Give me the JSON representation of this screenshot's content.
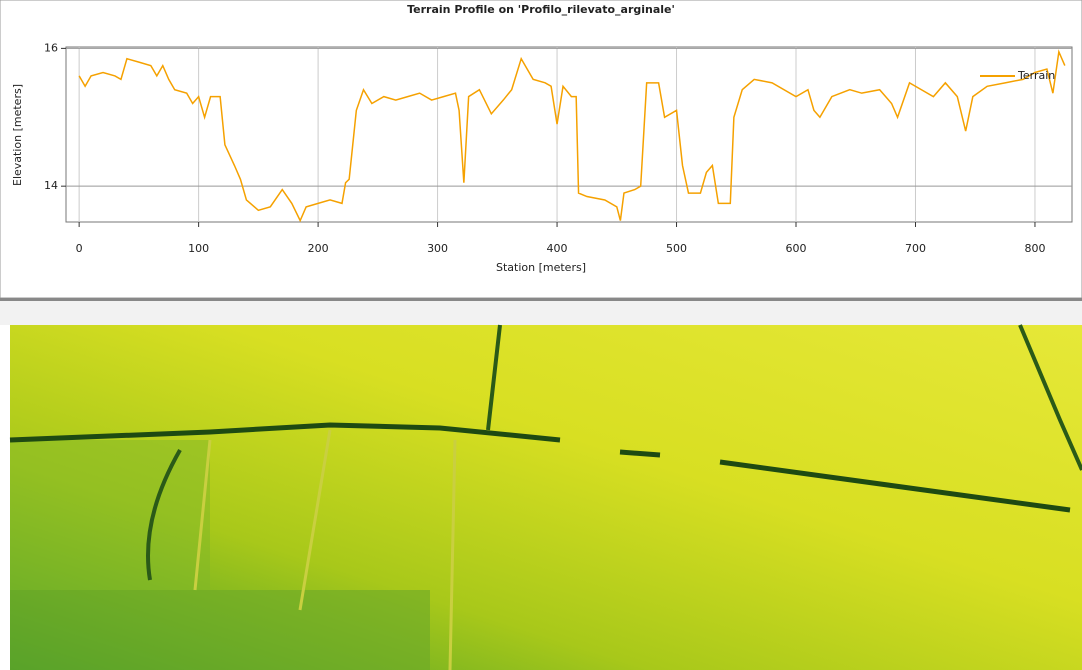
{
  "chart_data": {
    "type": "line",
    "title": "Terrain Profile on 'Profilo_rilevato_arginale'",
    "x_label": "Station [meters]",
    "y_label": "Elevation [meters]",
    "grid": true,
    "legend": "upper right",
    "xlim": [
      -11,
      831
    ],
    "ylim": [
      13.48,
      16.02
    ],
    "xticks": [
      0,
      100,
      200,
      300,
      400,
      500,
      600,
      700,
      800
    ],
    "yticks": [
      14,
      16
    ],
    "x": [
      0,
      5,
      10,
      20,
      30,
      35,
      40,
      50,
      60,
      65,
      70,
      75,
      80,
      90,
      95,
      100,
      105,
      110,
      118,
      122,
      130,
      135,
      140,
      150,
      160,
      170,
      178,
      185,
      190,
      200,
      210,
      220,
      223,
      226,
      232,
      238,
      245,
      255,
      265,
      275,
      285,
      295,
      305,
      315,
      318,
      322,
      326,
      335,
      345,
      355,
      362,
      370,
      380,
      390,
      395,
      400,
      405,
      412,
      416,
      418,
      425,
      440,
      450,
      453,
      456,
      465,
      470,
      475,
      485,
      490,
      500,
      505,
      510,
      520,
      525,
      530,
      535,
      545,
      548,
      555,
      565,
      580,
      600,
      610,
      615,
      620,
      630,
      645,
      655,
      670,
      680,
      685,
      695,
      705,
      715,
      725,
      735,
      742,
      748,
      760,
      775,
      790,
      800,
      810,
      815,
      820,
      825
    ],
    "series": [
      {
        "name": "Terrain",
        "color": "#f5a100",
        "values": [
          15.6,
          15.45,
          15.6,
          15.65,
          15.6,
          15.55,
          15.85,
          15.8,
          15.75,
          15.6,
          15.75,
          15.55,
          15.4,
          15.35,
          15.2,
          15.3,
          15.0,
          15.3,
          15.3,
          14.6,
          14.3,
          14.1,
          13.8,
          13.65,
          13.7,
          13.95,
          13.75,
          13.5,
          13.7,
          13.75,
          13.8,
          13.75,
          14.05,
          14.1,
          15.1,
          15.4,
          15.2,
          15.3,
          15.25,
          15.3,
          15.35,
          15.25,
          15.3,
          15.35,
          15.1,
          14.05,
          15.3,
          15.4,
          15.05,
          15.25,
          15.4,
          15.85,
          15.55,
          15.5,
          15.45,
          14.9,
          15.45,
          15.3,
          15.3,
          13.9,
          13.85,
          13.8,
          13.7,
          13.5,
          13.9,
          13.95,
          14.0,
          15.5,
          15.5,
          15.0,
          15.1,
          14.3,
          13.9,
          13.9,
          14.2,
          14.3,
          13.75,
          13.75,
          15.0,
          15.4,
          15.55,
          15.5,
          15.3,
          15.4,
          15.1,
          15.0,
          15.3,
          15.4,
          15.35,
          15.4,
          15.2,
          15.0,
          15.5,
          15.4,
          15.3,
          15.5,
          15.3,
          14.8,
          15.3,
          15.45,
          15.5,
          15.55,
          15.65,
          15.7,
          15.35,
          15.95,
          15.75
        ]
      }
    ]
  }
}
